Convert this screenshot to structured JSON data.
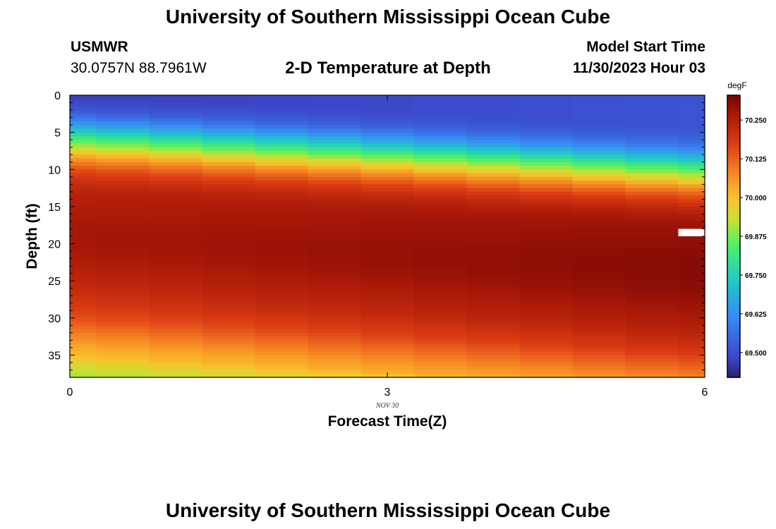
{
  "header": {
    "title": "University of Southern Mississippi Ocean Cube",
    "station": "USMWR",
    "coords": "30.0757N  88.7961W",
    "subtitle": "2-D Temperature at Depth",
    "model_label": "Model Start Time",
    "model_time": "11/30/2023 Hour 03"
  },
  "footer": {
    "title": "University of Southern Mississippi Ocean Cube"
  },
  "chart_data": {
    "type": "heatmap",
    "title": "2-D Temperature at Depth",
    "xlabel": "Forecast Time(Z)",
    "ylabel": "Depth (ft)",
    "x_tick_labels": [
      "0",
      "3",
      "6"
    ],
    "x_date_label": "NOV 30",
    "y_tick_labels": [
      "0",
      "5",
      "10",
      "15",
      "20",
      "25",
      "30",
      "35"
    ],
    "xlim": [
      0,
      6
    ],
    "ylim": [
      0,
      38
    ],
    "colorbar": {
      "unit": "degF",
      "tick_labels": [
        "69.500",
        "69.625",
        "69.750",
        "69.875",
        "70.000",
        "70.125",
        "70.250"
      ],
      "range": [
        69.42,
        70.33
      ]
    },
    "time_hours": [
      0,
      0.25,
      0.75,
      1.25,
      1.75,
      2.25,
      2.75,
      3.25,
      3.75,
      4.25,
      4.75,
      5.25,
      5.75,
      6
    ],
    "depth_ft": [
      0,
      0.5,
      1,
      1.5,
      2,
      2.5,
      3,
      3.5,
      4,
      4.5,
      5,
      5.5,
      6,
      6.5,
      7,
      7.5,
      8,
      8.5,
      9,
      9.5,
      10,
      10.5,
      11,
      11.5,
      12,
      12.5,
      13,
      13.5,
      14,
      14.5,
      15,
      15.5,
      16,
      16.5,
      17,
      17.5,
      18,
      18.5,
      19,
      19.5,
      20,
      20.5,
      21,
      21.5,
      22,
      22.5,
      23,
      23.5,
      24,
      24.5,
      25,
      25.5,
      26,
      26.5,
      27,
      27.5,
      28,
      28.5,
      29,
      29.5,
      30,
      30.5,
      31,
      31.5,
      32,
      32.5,
      33,
      33.5,
      34,
      34.5,
      35,
      35.5,
      36,
      36.5,
      37,
      37.5,
      38
    ],
    "surface_profile": [
      [
        0,
        69.47
      ],
      [
        1,
        69.49
      ],
      [
        2,
        69.52
      ],
      [
        3,
        69.58
      ],
      [
        4,
        69.66
      ],
      [
        5,
        69.75
      ],
      [
        6,
        69.84
      ],
      [
        7,
        69.93
      ],
      [
        8,
        70.02
      ],
      [
        9,
        70.09
      ],
      [
        10,
        70.15
      ],
      [
        11,
        70.19
      ],
      [
        12,
        70.22
      ],
      [
        13,
        70.24
      ],
      [
        14,
        70.25
      ],
      [
        16,
        70.26
      ],
      [
        18,
        70.27
      ],
      [
        20,
        70.27
      ],
      [
        22,
        70.26
      ],
      [
        24,
        70.24
      ],
      [
        26,
        70.22
      ],
      [
        28,
        70.19
      ],
      [
        30,
        70.15
      ],
      [
        31,
        70.12
      ],
      [
        32,
        70.09
      ],
      [
        33,
        70.06
      ],
      [
        34,
        70.03
      ],
      [
        35,
        70.01
      ],
      [
        36,
        69.97
      ],
      [
        37,
        69.93
      ],
      [
        38,
        69.9
      ]
    ],
    "profile_shift_ft_per_hour": 0.75,
    "profile_warming_degF_per_hour": 0.007,
    "missing_cell": {
      "time_hours": 6,
      "depth_ft": 18
    }
  }
}
